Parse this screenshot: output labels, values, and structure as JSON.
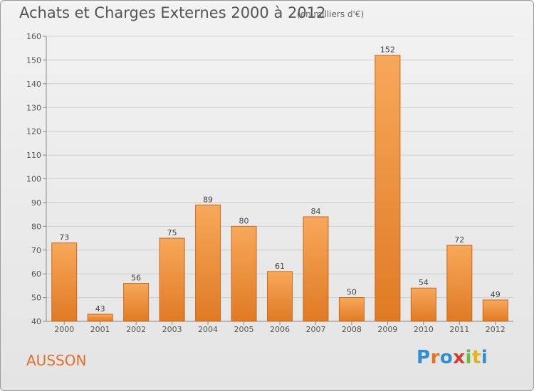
{
  "header": {
    "title": "Achats et Charges Externes 2000 à 2012",
    "subtitle": "(en milliers d'€)"
  },
  "footer": {
    "place": "AUSSON",
    "logo": "Proxiti",
    "logo_colors": [
      "#2e8fd4",
      "#e8731c",
      "#2e8fd4",
      "#d93a2a",
      "#6abf3a",
      "#e8b21c",
      "#2e8fd4"
    ]
  },
  "chart_data": {
    "type": "bar",
    "title": "Achats et Charges Externes 2000 à 2012",
    "subtitle": "(en milliers d'€)",
    "xlabel": "",
    "ylabel": "",
    "categories": [
      "2000",
      "2001",
      "2002",
      "2003",
      "2004",
      "2005",
      "2006",
      "2007",
      "2008",
      "2009",
      "2010",
      "2011",
      "2012"
    ],
    "values": [
      73,
      43,
      56,
      75,
      89,
      80,
      61,
      84,
      50,
      152,
      54,
      72,
      49
    ],
    "ylim": [
      40,
      160
    ],
    "yticks": [
      40,
      50,
      60,
      70,
      80,
      90,
      100,
      110,
      120,
      130,
      140,
      150,
      160
    ],
    "grid": true,
    "bar_color_top": "#f7a85a",
    "bar_color_bottom": "#e07a24",
    "bar_edge": "#c9691c"
  }
}
